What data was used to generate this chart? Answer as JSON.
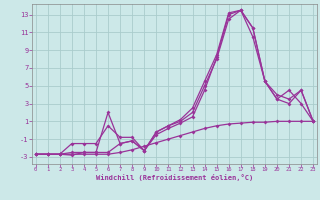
{
  "background_color": "#cce8e8",
  "grid_color": "#aacccc",
  "line_color": "#993399",
  "xlabel": "Windchill (Refroidissement éolien,°C)",
  "yticks": [
    -3,
    -1,
    1,
    3,
    5,
    7,
    9,
    11,
    13
  ],
  "xticks": [
    0,
    1,
    2,
    3,
    4,
    5,
    6,
    7,
    8,
    9,
    10,
    11,
    12,
    13,
    14,
    15,
    16,
    17,
    18,
    19,
    20,
    21,
    22,
    23
  ],
  "xlim": [
    -0.3,
    23.3
  ],
  "ylim": [
    -3.8,
    14.2
  ],
  "lines": [
    {
      "x": [
        0,
        1,
        2,
        3,
        4,
        5,
        6,
        7,
        8,
        9,
        10,
        11,
        12,
        13,
        14,
        15,
        16,
        17,
        18,
        19,
        20,
        21,
        22,
        23
      ],
      "y": [
        -2.7,
        -2.7,
        -2.7,
        -2.7,
        -2.7,
        -2.7,
        -2.7,
        -2.5,
        -2.2,
        -1.8,
        -1.4,
        -1.0,
        -0.6,
        -0.2,
        0.2,
        0.5,
        0.7,
        0.8,
        0.9,
        0.9,
        1.0,
        1.0,
        1.0,
        1.0
      ]
    },
    {
      "x": [
        0,
        1,
        2,
        3,
        4,
        5,
        6,
        7,
        8,
        9,
        10,
        11,
        12,
        13,
        14,
        15,
        16,
        17,
        18,
        19,
        20,
        21,
        22,
        23
      ],
      "y": [
        -2.7,
        -2.7,
        -2.7,
        -2.8,
        -2.5,
        -2.5,
        2.0,
        -1.5,
        -1.2,
        -2.3,
        -0.5,
        0.2,
        0.8,
        1.5,
        4.5,
        8.2,
        13.0,
        13.5,
        11.5,
        5.5,
        3.5,
        4.5,
        3.0,
        1.0
      ]
    },
    {
      "x": [
        0,
        1,
        2,
        3,
        4,
        5,
        6,
        7,
        8,
        9,
        10,
        11,
        12,
        13,
        14,
        15,
        16,
        17,
        18,
        19,
        20,
        21,
        22,
        23
      ],
      "y": [
        -2.7,
        -2.7,
        -2.7,
        -1.5,
        -1.5,
        -1.5,
        0.5,
        -0.8,
        -0.8,
        -2.3,
        -0.2,
        0.5,
        1.0,
        2.0,
        5.0,
        8.0,
        12.5,
        13.5,
        10.5,
        5.5,
        3.5,
        3.0,
        4.5,
        1.0
      ]
    },
    {
      "x": [
        0,
        1,
        2,
        3,
        4,
        5,
        6,
        7,
        8,
        9,
        10,
        11,
        12,
        13,
        14,
        15,
        16,
        17,
        18,
        19,
        20,
        21,
        22,
        23
      ],
      "y": [
        -2.7,
        -2.7,
        -2.7,
        -2.5,
        -2.5,
        -2.5,
        -2.5,
        -1.5,
        -1.2,
        -2.3,
        -0.2,
        0.5,
        1.2,
        2.5,
        5.5,
        8.5,
        13.2,
        13.5,
        11.5,
        5.5,
        4.0,
        3.5,
        4.5,
        1.0
      ]
    }
  ]
}
